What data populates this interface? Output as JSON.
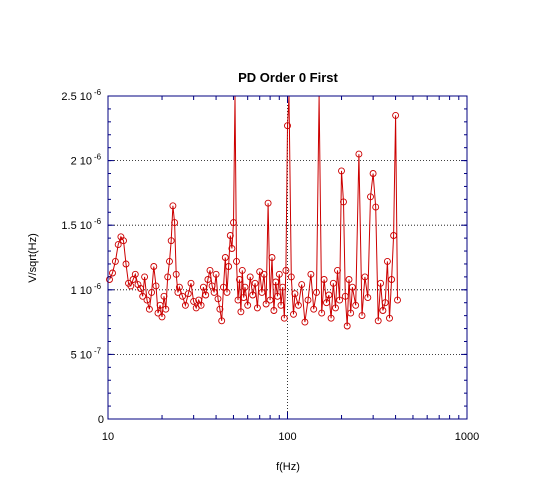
{
  "chart_data": {
    "type": "scatter",
    "title": "PD Order 0 First",
    "xlabel": "f(Hz)",
    "ylabel": "V/sqrt(Hz)",
    "xscale": "log",
    "xlim": [
      10,
      1000
    ],
    "ylim": [
      0,
      2.5e-06
    ],
    "grid": "dotted",
    "marker": "open-circle",
    "connected": true,
    "color": "#cc0000",
    "frame_color": "#000080",
    "x_ticks": [
      {
        "value": 10,
        "label": "10"
      },
      {
        "value": 100,
        "label": "100"
      },
      {
        "value": 1000,
        "label": "1000"
      }
    ],
    "y_ticks": [
      {
        "value": 0,
        "mantissa": "0",
        "exp": ""
      },
      {
        "value": 5e-07,
        "mantissa": "5 10",
        "exp": "-7"
      },
      {
        "value": 1e-06,
        "mantissa": "1 10",
        "exp": "-6"
      },
      {
        "value": 1.5e-06,
        "mantissa": "1.5 10",
        "exp": "-6"
      },
      {
        "value": 2e-06,
        "mantissa": "2 10",
        "exp": "-6"
      },
      {
        "value": 2.5e-06,
        "mantissa": "2.5 10",
        "exp": "-6"
      }
    ],
    "series": [
      {
        "x": [
          10.2,
          10.6,
          11.0,
          11.4,
          11.8,
          12.2,
          12.6,
          13.0,
          13.4,
          13.8,
          14.2,
          14.7,
          15.2,
          15.6,
          16.0,
          16.5,
          17.0,
          17.5,
          18.0,
          18.5,
          19.0,
          19.5,
          20.0,
          20.5,
          21.0,
          21.5,
          22.0,
          22.5,
          23.0,
          23.5,
          24.0,
          24.5,
          25.0,
          26.0,
          27.0,
          28.0,
          29.0,
          30.0,
          31.0,
          32.0,
          33.0,
          34.0,
          35.0,
          36.0,
          37.0,
          38.0,
          39.0,
          40.0,
          41.0,
          42.0,
          43.0,
          44.0,
          45.0,
          46.0,
          47.0,
          48.0,
          49.0,
          50.0,
          51.0,
          52.0,
          53.0,
          54.0,
          55.0,
          56.0,
          57.0,
          58.0,
          60.0,
          62.0,
          64.0,
          66.0,
          68.0,
          70.0,
          72.0,
          74.0,
          76.0,
          78.0,
          80.0,
          82.0,
          84.0,
          86.0,
          88.0,
          90.0,
          92.0,
          94.0,
          96.0,
          98.0,
          100.0,
          102.0,
          105.0,
          108.0,
          110.0,
          115.0,
          120.0,
          125.0,
          130.0,
          135.0,
          140.0,
          145.0,
          150.0,
          155.0,
          160.0,
          165.0,
          170.0,
          175.0,
          180.0,
          185.0,
          190.0,
          195.0,
          200.0,
          205.0,
          210.0,
          215.0,
          220.0,
          225.0,
          230.0,
          240.0,
          250.0,
          260.0,
          270.0,
          280.0,
          290.0,
          300.0,
          310.0,
          320.0,
          330.0,
          340.0,
          350.0,
          360.0,
          370.0,
          380.0,
          390.0,
          400.0,
          410.0
        ],
        "y": [
          1.08e-06,
          1.13e-06,
          1.22e-06,
          1.35e-06,
          1.41e-06,
          1.38e-06,
          1.2e-06,
          1.05e-06,
          1.03e-06,
          1.08e-06,
          1.12e-06,
          1.04e-06,
          1.01e-06,
          9.5e-07,
          1.1e-06,
          9.2e-07,
          8.5e-07,
          9.8e-07,
          1.18e-06,
          1.03e-06,
          8.2e-07,
          8.8e-07,
          7.9e-07,
          9.5e-07,
          8.5e-07,
          1.1e-06,
          1.22e-06,
          1.38e-06,
          1.65e-06,
          1.52e-06,
          1.12e-06,
          9.8e-07,
          1.02e-06,
          9.5e-07,
          8.8e-07,
          9.7e-07,
          1.05e-06,
          9.1e-07,
          8.6e-07,
          9.2e-07,
          8.8e-07,
          1.02e-06,
          9.6e-07,
          1.08e-06,
          1.15e-06,
          1.03e-06,
          9.8e-07,
          1.12e-06,
          9.3e-07,
          8.5e-07,
          7.6e-07,
          1.02e-06,
          1.25e-06,
          9.8e-07,
          1.18e-06,
          1.42e-06,
          1.32e-06,
          1.52e-06,
          2.52e-06,
          1.22e-06,
          9.2e-07,
          1.08e-06,
          8.3e-07,
          1.15e-06,
          9.4e-07,
          1.02e-06,
          8.8e-07,
          1.1e-06,
          9.6e-07,
          1.05e-06,
          8.6e-07,
          1.14e-06,
          9.8e-07,
          1.12e-06,
          8.9e-07,
          1.67e-06,
          9.2e-07,
          1.25e-06,
          8.4e-07,
          1.06e-06,
          9.5e-07,
          1.12e-06,
          8.8e-07,
          1.02e-06,
          7.8e-07,
          1.15e-06,
          2.27e-06,
          2.52e-06,
          1.1e-06,
          8.1e-07,
          9.7e-07,
          8.8e-07,
          1.04e-06,
          7.5e-07,
          9.2e-07,
          1.12e-06,
          8.5e-07,
          9.8e-07,
          2.52e-06,
          8.2e-07,
          1.08e-06,
          9e-07,
          9.6e-07,
          7.8e-07,
          1.05e-06,
          8.6e-07,
          1.15e-06,
          9.2e-07,
          1.92e-06,
          1.68e-06,
          9.5e-07,
          7.2e-07,
          1.08e-06,
          8.2e-07,
          1.02e-06,
          8.8e-07,
          2.05e-06,
          8e-07,
          1.1e-06,
          9.4e-07,
          1.72e-06,
          1.9e-06,
          1.64e-06,
          7.6e-07,
          1.05e-06,
          8.4e-07,
          9e-07,
          1.22e-06,
          7.8e-07,
          1.08e-06,
          1.42e-06,
          2.35e-06,
          9.2e-07
        ]
      }
    ]
  }
}
